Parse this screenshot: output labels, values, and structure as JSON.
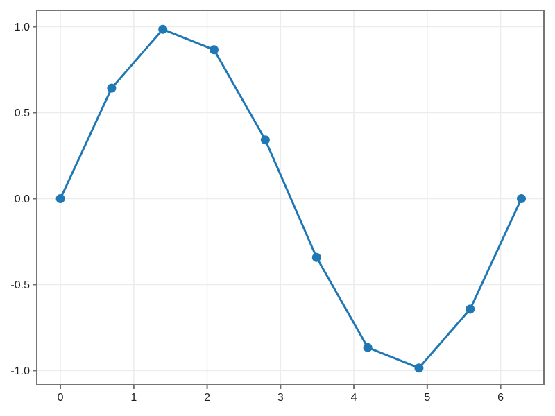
{
  "figure": {
    "title": "",
    "background_color": "#ffffff"
  },
  "chart_data": {
    "type": "line",
    "title": "",
    "xlabel": "",
    "ylabel": "",
    "x": [
      0.0,
      0.698,
      1.396,
      2.094,
      2.793,
      3.491,
      4.189,
      4.887,
      5.585,
      6.283
    ],
    "y": [
      0.0,
      0.643,
      0.985,
      0.866,
      0.342,
      -0.342,
      -0.866,
      -0.985,
      -0.643,
      0.0
    ],
    "xlim": [
      -0.322,
      6.59
    ],
    "ylim": [
      -1.083,
      1.095
    ],
    "xticks": {
      "values": [
        0,
        1,
        2,
        3,
        4,
        5,
        6
      ],
      "labels": [
        "0",
        "1",
        "2",
        "3",
        "4",
        "5",
        "6"
      ]
    },
    "yticks": {
      "values": [
        1.0,
        0.5,
        0.0,
        -0.5,
        -1.0
      ],
      "labels": [
        "1.0",
        "0.5",
        "0.0",
        "-0.5",
        "-1.0"
      ]
    },
    "grid": true,
    "legend_position": "none",
    "marker": "circle",
    "line_width": 3,
    "marker_radius": 6.5,
    "colors": {
      "series": "#1f77b4",
      "grid": "#ececec",
      "spine": "#757575",
      "tick": "#6e6e6e",
      "tick_label": "#1d1d1d",
      "background": "#ffffff"
    }
  }
}
